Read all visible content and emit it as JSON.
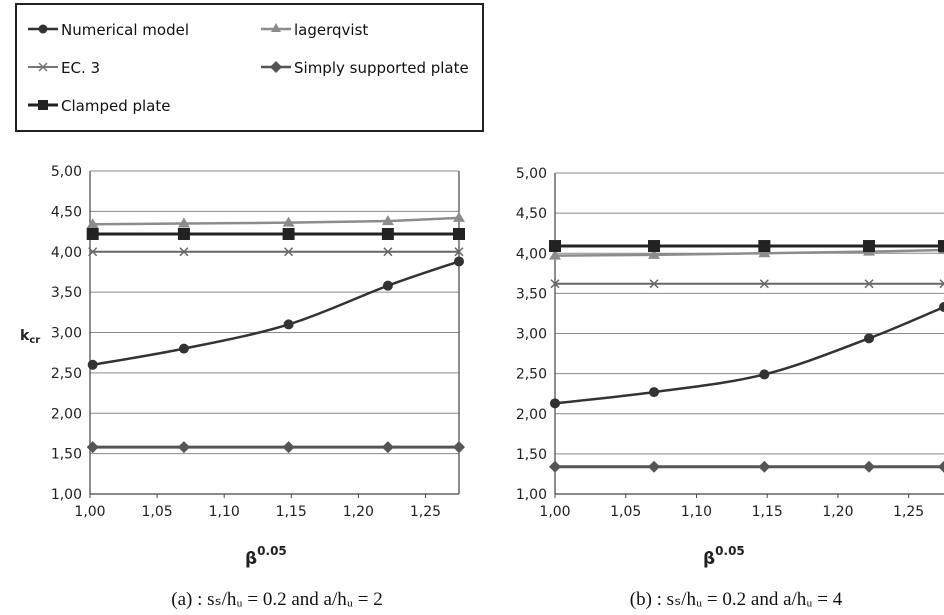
{
  "legend": {
    "items": [
      {
        "label": "Numerical model",
        "marker": "circle",
        "color": "#333333"
      },
      {
        "label": "lagerqvist",
        "marker": "triangle",
        "color": "#8c8c8c"
      },
      {
        "label": "EC. 3",
        "marker": "x",
        "color": "#666666"
      },
      {
        "label": "Simply supported plate",
        "marker": "diamond",
        "color": "#555555"
      },
      {
        "label": "Clamped plate",
        "marker": "square",
        "color": "#222222"
      }
    ]
  },
  "chart_data": [
    {
      "type": "line",
      "ylabel_main": "k",
      "ylabel_sub": "cr",
      "xlabel_main": "β",
      "xlabel_sup": "0.05",
      "caption": "(a) : sₛ/hᵤ = 0.2 and a/hᵤ = 2",
      "ylim": [
        1.0,
        5.0
      ],
      "xlim": [
        1.0,
        1.275
      ],
      "y_ticks": [
        "1,00",
        "1,50",
        "2,00",
        "2,50",
        "3,00",
        "3,50",
        "4,00",
        "4,50",
        "5,00"
      ],
      "x_ticks": [
        "1,00",
        "1,05",
        "1,10",
        "1,15",
        "1,20",
        "1,25"
      ],
      "grid": "horizontal",
      "x": [
        1.002,
        1.07,
        1.148,
        1.222,
        1.275
      ],
      "series": [
        {
          "name": "Numerical model",
          "values": [
            2.6,
            2.8,
            3.1,
            3.58,
            3.88
          ]
        },
        {
          "name": "lagerqvist",
          "values": [
            4.34,
            4.35,
            4.36,
            4.38,
            4.42
          ]
        },
        {
          "name": "EC. 3",
          "values": [
            4.0,
            4.0,
            4.0,
            4.0,
            4.0
          ]
        },
        {
          "name": "Simply supported plate",
          "values": [
            1.58,
            1.58,
            1.58,
            1.58,
            1.58
          ]
        },
        {
          "name": "Clamped plate",
          "values": [
            4.22,
            4.22,
            4.22,
            4.22,
            4.22
          ]
        }
      ]
    },
    {
      "type": "line",
      "ylabel_main": "",
      "ylabel_sub": "",
      "xlabel_main": "β",
      "xlabel_sup": "0.05",
      "caption": "(b) : sₛ/hᵤ = 0.2 and a/hᵤ = 4",
      "ylim": [
        1.0,
        5.0
      ],
      "xlim": [
        1.0,
        1.275
      ],
      "y_ticks": [
        "1,00",
        "1,50",
        "2,00",
        "2,50",
        "3,00",
        "3,50",
        "4,00",
        "4,50",
        "5,00"
      ],
      "x_ticks": [
        "1,00",
        "1,05",
        "1,10",
        "1,15",
        "1,20",
        "1,25"
      ],
      "grid": "horizontal",
      "x": [
        1.0,
        1.07,
        1.148,
        1.222,
        1.275
      ],
      "series": [
        {
          "name": "Numerical model",
          "values": [
            2.13,
            2.27,
            2.49,
            2.94,
            3.33
          ]
        },
        {
          "name": "lagerqvist",
          "values": [
            3.97,
            3.98,
            4.0,
            4.02,
            4.04
          ]
        },
        {
          "name": "EC. 3",
          "values": [
            3.62,
            3.62,
            3.62,
            3.62,
            3.62
          ]
        },
        {
          "name": "Simply supported plate",
          "values": [
            1.34,
            1.34,
            1.34,
            1.34,
            1.34
          ]
        },
        {
          "name": "Clamped plate",
          "values": [
            4.09,
            4.09,
            4.09,
            4.09,
            4.09
          ]
        }
      ]
    }
  ]
}
